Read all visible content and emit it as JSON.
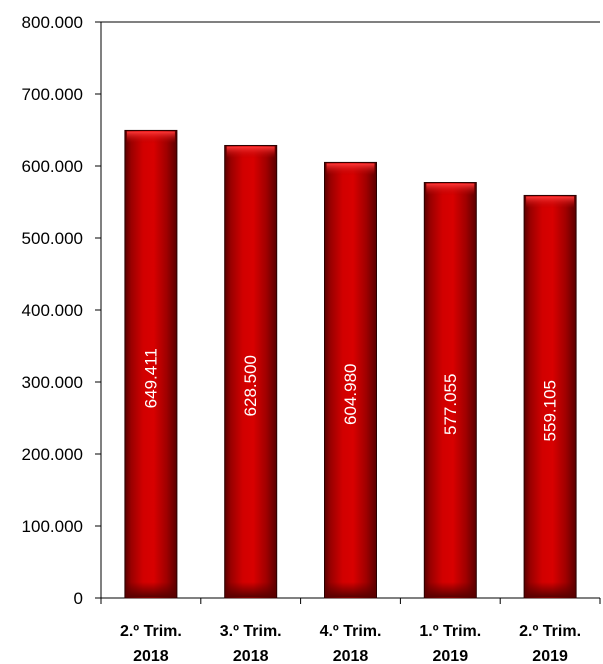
{
  "chart_data": {
    "type": "bar",
    "categories": [
      [
        "2.º Trim.",
        "2018"
      ],
      [
        "3.º Trim.",
        "2018"
      ],
      [
        "4.º Trim.",
        "2018"
      ],
      [
        "1.º Trim.",
        "2019"
      ],
      [
        "2.º Trim.",
        "2019"
      ]
    ],
    "values": [
      649411,
      628500,
      604980,
      577055,
      559105
    ],
    "data_labels": [
      "649.411",
      "628.500",
      "604.980",
      "577.055",
      "559.105"
    ],
    "yticks": [
      0,
      100000,
      200000,
      300000,
      400000,
      500000,
      600000,
      700000,
      800000
    ],
    "ytick_labels": [
      "0",
      "100.000",
      "200.000",
      "300.000",
      "400.000",
      "500.000",
      "600.000",
      "700.000",
      "800.000"
    ],
    "ylim": [
      0,
      800000
    ],
    "title": "",
    "xlabel": "",
    "ylabel": "",
    "grid": false,
    "legend": "none",
    "bar_color": "#c00000",
    "bar_dark_color": "#5a0000"
  }
}
